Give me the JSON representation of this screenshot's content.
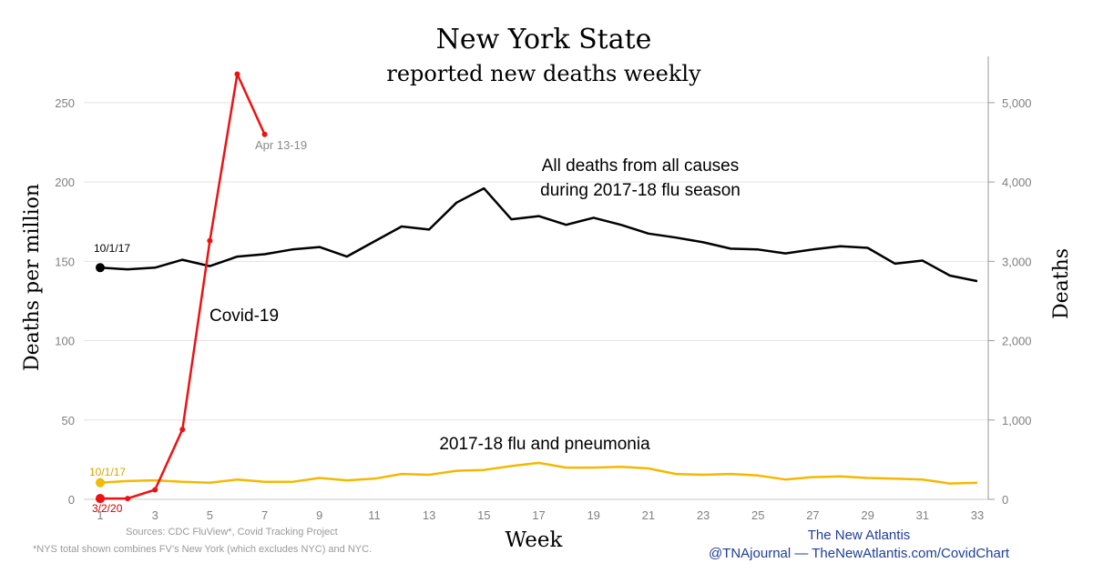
{
  "chart_data": {
    "type": "line",
    "title": "New York State",
    "subtitle": "reported new deaths weekly",
    "xlabel": "Week",
    "ylabel_left": "Deaths per million",
    "ylabel_right": "Deaths",
    "x_ticks": [
      1,
      3,
      5,
      7,
      9,
      11,
      13,
      15,
      17,
      19,
      21,
      23,
      25,
      27,
      29,
      31,
      33
    ],
    "xlim": [
      1,
      33
    ],
    "ylim_left": [
      0,
      270
    ],
    "yticks_left": [
      0,
      50,
      100,
      150,
      200,
      250
    ],
    "ylim_right": [
      0,
      5400
    ],
    "yticks_right": [
      "0",
      "1,000",
      "2,000",
      "3,000",
      "4,000",
      "5,000"
    ],
    "yticks_right_values": [
      0,
      1000,
      2000,
      3000,
      4000,
      5000
    ],
    "grid": "horizontal",
    "series": [
      {
        "name": "All deaths from all causes during 2017-18 flu season",
        "label_lines": [
          "All deaths from all causes",
          "during 2017-18 flu season"
        ],
        "color": "#000000",
        "x": [
          1,
          2,
          3,
          4,
          5,
          6,
          7,
          8,
          9,
          10,
          11,
          12,
          13,
          14,
          15,
          16,
          17,
          18,
          19,
          20,
          21,
          22,
          23,
          24,
          25,
          26,
          27,
          28,
          29,
          30,
          31,
          32,
          33
        ],
        "y": [
          146,
          145,
          146,
          151,
          147,
          153,
          154.5,
          157.5,
          159,
          153,
          162.5,
          172,
          170,
          187,
          196,
          176.5,
          178.5,
          173,
          177.5,
          173,
          167.5,
          165,
          162,
          158,
          157.5,
          155,
          157.5,
          159.5,
          158.5,
          148.5,
          150.5,
          141,
          137.5
        ],
        "start_label": "10/1/17"
      },
      {
        "name": "Covid-19",
        "label_lines": [
          "Covid-19"
        ],
        "color": "#ee1111",
        "x": [
          1,
          2,
          3,
          4,
          5,
          6,
          7
        ],
        "y": [
          0.5,
          0.5,
          6,
          44,
          163,
          268,
          230
        ],
        "start_label": "3/2/20",
        "end_label": "Apr 13-19"
      },
      {
        "name": "2017-18 flu and pneumonia",
        "label_lines": [
          "2017-18 flu and pneumonia"
        ],
        "color": "#f5b800",
        "x": [
          1,
          2,
          3,
          4,
          5,
          6,
          7,
          8,
          9,
          10,
          11,
          12,
          13,
          14,
          15,
          16,
          17,
          18,
          19,
          20,
          21,
          22,
          23,
          24,
          25,
          26,
          27,
          28,
          29,
          30,
          31,
          32,
          33
        ],
        "y": [
          10.5,
          11.5,
          12,
          11,
          10.5,
          12.5,
          11,
          11,
          13.5,
          12,
          13,
          16,
          15.5,
          18,
          18.5,
          21,
          23,
          20,
          20,
          20.5,
          19.5,
          16,
          15.5,
          16,
          15,
          12.5,
          14,
          14.5,
          13.5,
          13,
          12.5,
          10,
          10.5
        ],
        "start_label": "10/1/17"
      }
    ],
    "sources": "Sources: CDC FluView*, Covid Tracking Project",
    "footnote": "*NYS total shown combines FV’s New York (which excludes NYC) and NYC.",
    "credit_1": "The New Atlantis",
    "credit_2": "@TNAjournal — TheNewAtlantis.com/CovidChart"
  }
}
